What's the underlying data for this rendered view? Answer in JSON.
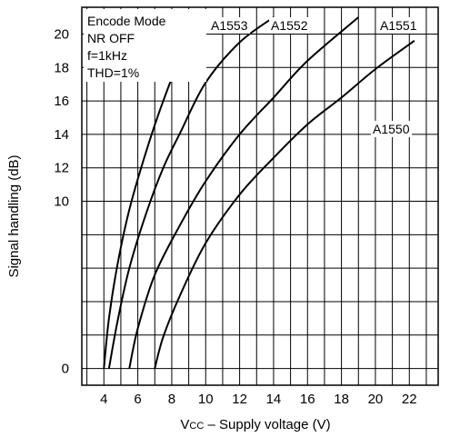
{
  "chart_data": {
    "type": "line",
    "title": "",
    "xlabel_prefix": "Vcc",
    "xlabel_suffix": " – Supply voltage (V)",
    "ylabel": "Signal handling (dB)",
    "xlim": [
      2.7,
      23.7
    ],
    "ylim": [
      -1,
      21.6
    ],
    "x_ticks": [
      4,
      6,
      8,
      10,
      12,
      14,
      16,
      18,
      20,
      22
    ],
    "y_ticks": [
      0,
      2,
      4,
      6,
      8,
      10,
      12,
      14,
      16,
      18,
      20
    ],
    "y_tick_labels": [
      "0",
      "10",
      "12",
      "14",
      "16",
      "18",
      "20"
    ],
    "y_tick_label_values": [
      0,
      10,
      12,
      14,
      16,
      18,
      20
    ],
    "grid": true,
    "conditions": [
      "Encode  Mode",
      "NR  OFF",
      "f=1kHz",
      "THD=1%"
    ],
    "series": [
      {
        "name": "A1553",
        "x": [
          4.0,
          4.3,
          4.8,
          5.5,
          6.5,
          7.5,
          8.5,
          10.0
        ],
        "y": [
          0,
          3,
          6.2,
          9.5,
          13,
          16,
          18.5,
          21
        ]
      },
      {
        "name": "A1552",
        "x": [
          4.3,
          4.8,
          5.5,
          6.5,
          7.5,
          8.5,
          10.0,
          12.0,
          14.0
        ],
        "y": [
          0,
          2.8,
          6,
          9.3,
          12,
          14.1,
          17.1,
          19.5,
          21
        ]
      },
      {
        "name": "A1551",
        "x": [
          5.5,
          6.0,
          7.0,
          8.5,
          10.0,
          12.0,
          14.0,
          16.0,
          19.0
        ],
        "y": [
          0,
          2.4,
          5.6,
          8.6,
          11.2,
          14.0,
          16.2,
          18.4,
          21
        ]
      },
      {
        "name": "A1550",
        "x": [
          7.0,
          7.5,
          8.5,
          10.0,
          12.0,
          14.0,
          16.0,
          18.0,
          20.0,
          22.3
        ],
        "y": [
          0,
          1.9,
          4.4,
          7.5,
          10.4,
          12.6,
          14.6,
          16.2,
          17.9,
          19.6
        ]
      }
    ]
  }
}
